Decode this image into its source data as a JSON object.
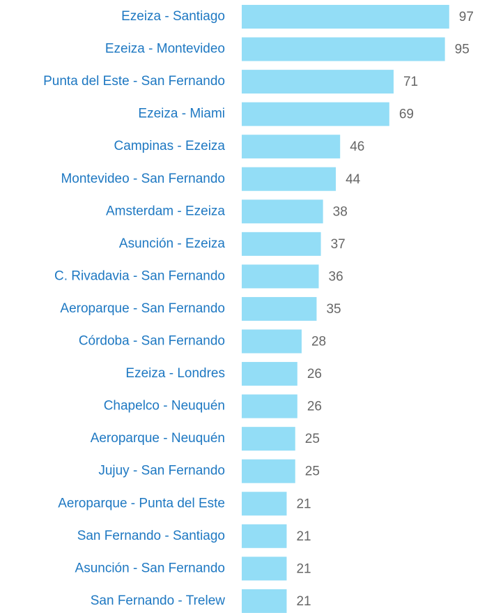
{
  "chart_data": {
    "type": "bar",
    "orientation": "horizontal",
    "categories": [
      "Ezeiza - Santiago",
      "Ezeiza - Montevideo",
      "Punta del Este - San Fernando",
      "Ezeiza - Miami",
      "Campinas - Ezeiza",
      "Montevideo - San Fernando",
      "Amsterdam - Ezeiza",
      "Asunción - Ezeiza",
      "C. Rivadavia - San Fernando",
      "Aeroparque - San Fernando",
      "Córdoba - San Fernando",
      "Ezeiza - Londres",
      "Chapelco - Neuquén",
      "Aeroparque - Neuquén",
      "Jujuy - San Fernando",
      "Aeroparque - Punta del Este",
      "San Fernando - Santiago",
      "Asunción - San Fernando",
      "San Fernando - Trelew"
    ],
    "values": [
      97,
      95,
      71,
      69,
      46,
      44,
      38,
      37,
      36,
      35,
      28,
      26,
      26,
      25,
      25,
      21,
      21,
      21,
      21
    ],
    "color": "#93ddf6",
    "xlim": [
      0,
      100
    ]
  }
}
